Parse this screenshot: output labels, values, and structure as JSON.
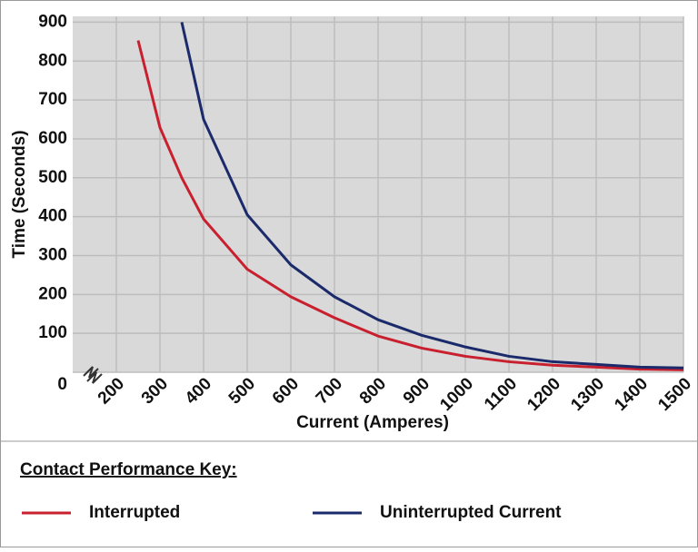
{
  "chart_data": {
    "type": "line",
    "x_label": "Current (Amperes)",
    "y_label": "Time (Seconds)",
    "legend_title": "Contact Performance Key:",
    "x": [
      250,
      300,
      350,
      400,
      500,
      600,
      700,
      800,
      900,
      1000,
      1100,
      1200,
      1300,
      1400,
      1500
    ],
    "series": [
      {
        "name": "Interrupted",
        "color": "#c8202f",
        "values": [
          853,
          629,
          500,
          394,
          265,
          194,
          140,
          93,
          62,
          41,
          27,
          18,
          13,
          8,
          6
        ]
      },
      {
        "name": "Uninterrupted Current",
        "color": "#1b2a6b",
        "values": [
          null,
          null,
          900,
          650,
          405,
          276,
          194,
          135,
          95,
          65,
          41,
          27,
          20,
          13,
          11
        ]
      }
    ],
    "xlim": [
      100,
      1500
    ],
    "xticks": [
      200,
      300,
      400,
      500,
      600,
      700,
      800,
      900,
      1000,
      1100,
      1200,
      1300,
      1400,
      1500
    ],
    "ylim": [
      0,
      915
    ],
    "yticks": [
      0,
      100,
      200,
      300,
      400,
      500,
      600,
      700,
      800,
      900
    ],
    "grid": true
  }
}
